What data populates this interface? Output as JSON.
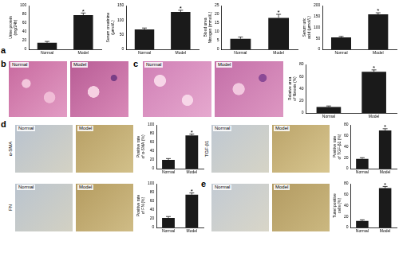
{
  "panel_labels": [
    "a",
    "b",
    "c",
    "d",
    "e"
  ],
  "image_groups": [
    {
      "images": [
        "Normal",
        "Model"
      ]
    },
    {
      "images": [
        "Normal",
        "Model"
      ]
    },
    {
      "stain": "α-SMA",
      "images": [
        "Normal",
        "Model"
      ]
    },
    {
      "stain": "TGF-β1",
      "images": [
        "Normal",
        "Model"
      ]
    },
    {
      "stain": "FN",
      "images": [
        "Normal",
        "Model"
      ]
    },
    {
      "images": [
        "Normal",
        "Model"
      ]
    }
  ],
  "chart_data": [
    {
      "type": "bar",
      "ylabel": "Urine protein (mg/24h)",
      "categories": [
        "Normal",
        "Model"
      ],
      "values": [
        15,
        78
      ],
      "errors": [
        3,
        5
      ],
      "color": "#1a1a1a",
      "ylim": [
        0,
        100
      ],
      "yticks": [
        0,
        20,
        40,
        60,
        80,
        100
      ],
      "grid": false,
      "annotations": [
        {
          "category": "Model",
          "text": "*"
        }
      ]
    },
    {
      "type": "bar",
      "ylabel": "Serum creatinine (μmol/L)",
      "categories": [
        "Normal",
        "Model"
      ],
      "values": [
        68,
        128
      ],
      "errors": [
        5,
        6
      ],
      "color": "#1a1a1a",
      "ylim": [
        0,
        150
      ],
      "yticks": [
        0,
        50,
        100,
        150
      ],
      "grid": false,
      "annotations": [
        {
          "category": "Model",
          "text": "*"
        }
      ]
    },
    {
      "type": "bar",
      "ylabel": "Blood urea Nitrogen (mmol/L)",
      "categories": [
        "Normal",
        "Model"
      ],
      "values": [
        6,
        18
      ],
      "errors": [
        1,
        2
      ],
      "color": "#1a1a1a",
      "ylim": [
        0,
        25
      ],
      "yticks": [
        0,
        5,
        10,
        15,
        20,
        25
      ],
      "grid": false,
      "annotations": [
        {
          "category": "Model",
          "text": "*"
        }
      ]
    },
    {
      "type": "bar",
      "ylabel": "Serum uric acid (μmol/L)",
      "categories": [
        "Normal",
        "Model"
      ],
      "values": [
        55,
        160
      ],
      "errors": [
        4,
        7
      ],
      "color": "#1a1a1a",
      "ylim": [
        0,
        200
      ],
      "yticks": [
        0,
        50,
        100,
        150,
        200
      ],
      "grid": false,
      "annotations": [
        {
          "category": "Model",
          "text": "*"
        }
      ]
    },
    {
      "type": "bar",
      "ylabel": "Relative area of fibrosis (%)",
      "categories": [
        "Normal",
        "Model"
      ],
      "values": [
        10,
        68
      ],
      "errors": [
        1.5,
        3
      ],
      "color": "#1a1a1a",
      "ylim": [
        0,
        80
      ],
      "yticks": [
        0,
        20,
        40,
        60,
        80
      ],
      "grid": false,
      "annotations": [
        {
          "category": "Model",
          "text": "*"
        }
      ]
    },
    {
      "type": "bar",
      "ylabel": "Positive rate of α-SMA (%)",
      "categories": [
        "Normal",
        "Model"
      ],
      "values": [
        20,
        76
      ],
      "errors": [
        3,
        3
      ],
      "color": "#1a1a1a",
      "ylim": [
        0,
        100
      ],
      "yticks": [
        0,
        20,
        40,
        60,
        80,
        100
      ],
      "grid": false,
      "annotations": [
        {
          "category": "Model",
          "text": "*"
        }
      ]
    },
    {
      "type": "bar",
      "ylabel": "Positive rate of TGF-β1 (%)",
      "categories": [
        "Normal",
        "Model"
      ],
      "values": [
        18,
        70
      ],
      "errors": [
        2,
        3
      ],
      "color": "#1a1a1a",
      "ylim": [
        0,
        80
      ],
      "yticks": [
        0,
        20,
        40,
        60,
        80
      ],
      "grid": false,
      "annotations": [
        {
          "category": "Model",
          "text": "*"
        }
      ]
    },
    {
      "type": "bar",
      "ylabel": "Positive rate of FN (%)",
      "categories": [
        "Normal",
        "Model"
      ],
      "values": [
        22,
        75
      ],
      "errors": [
        3,
        4
      ],
      "color": "#1a1a1a",
      "ylim": [
        0,
        100
      ],
      "yticks": [
        0,
        20,
        40,
        60,
        80,
        100
      ],
      "grid": false,
      "annotations": [
        {
          "category": "Model",
          "text": "*"
        }
      ]
    },
    {
      "type": "bar",
      "ylabel": "Tunel positive cells (%)",
      "categories": [
        "Normal",
        "Model"
      ],
      "values": [
        12,
        72
      ],
      "errors": [
        2,
        3
      ],
      "color": "#1a1a1a",
      "ylim": [
        0,
        80
      ],
      "yticks": [
        0,
        20,
        40,
        60,
        80
      ],
      "grid": false,
      "annotations": [
        {
          "category": "Model",
          "text": "*"
        }
      ]
    }
  ]
}
